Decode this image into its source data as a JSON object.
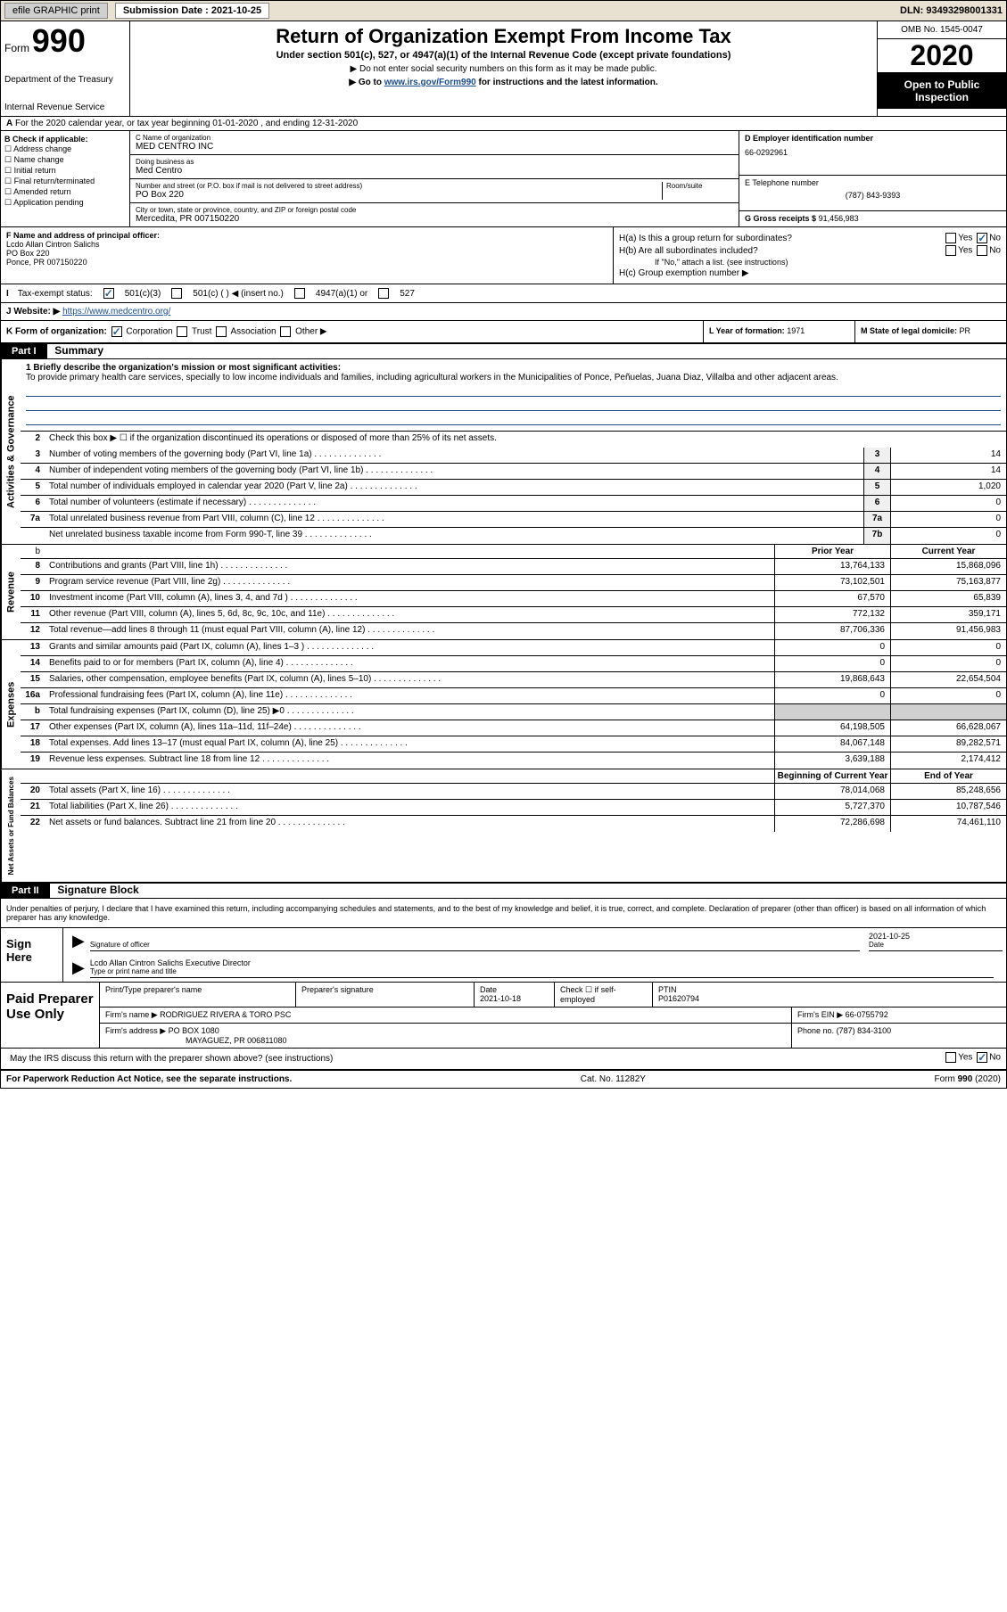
{
  "top": {
    "efile": "efile GRAPHIC print",
    "sub_label": "Submission Date : 2021-10-25",
    "dln": "DLN: 93493298001331"
  },
  "header": {
    "form_label": "Form",
    "form_num": "990",
    "dept": "Department of the Treasury",
    "irs": "Internal Revenue Service",
    "title": "Return of Organization Exempt From Income Tax",
    "sub1": "Under section 501(c), 527, or 4947(a)(1) of the Internal Revenue Code (except private foundations)",
    "sub2": "▶ Do not enter social security numbers on this form as it may be made public.",
    "sub3_pre": "▶ Go to ",
    "sub3_link": "www.irs.gov/Form990",
    "sub3_post": " for instructions and the latest information.",
    "omb": "OMB No. 1545-0047",
    "year": "2020",
    "open_pub": "Open to Public Inspection"
  },
  "row_a": "For the 2020 calendar year, or tax year beginning 01-01-2020   , and ending 12-31-2020",
  "sec_b": {
    "title": "B Check if applicable:",
    "opts": [
      "Address change",
      "Name change",
      "Initial return",
      "Final return/terminated",
      "Amended return",
      "Application pending"
    ]
  },
  "sec_c": {
    "name_label": "C Name of organization",
    "name": "MED CENTRO INC",
    "dba_label": "Doing business as",
    "dba": "Med Centro",
    "addr_label": "Number and street (or P.O. box if mail is not delivered to street address)",
    "room_label": "Room/suite",
    "addr": "PO Box 220",
    "city_label": "City or town, state or province, country, and ZIP or foreign postal code",
    "city": "Mercedita, PR  007150220"
  },
  "sec_d": {
    "label": "D Employer identification number",
    "val": "66-0292961"
  },
  "sec_e": {
    "label": "E Telephone number",
    "val": "(787) 843-9393"
  },
  "sec_g": {
    "label": "G Gross receipts $",
    "val": "91,456,983"
  },
  "sec_f": {
    "label": "F  Name and address of principal officer:",
    "name": "Lcdo Allan Cintron Salichs",
    "addr1": "PO Box 220",
    "addr2": "Ponce, PR  007150220"
  },
  "sec_h": {
    "ha": "H(a)  Is this a group return for subordinates?",
    "hb": "H(b)  Are all subordinates included?",
    "hb_note": "If \"No,\" attach a list. (see instructions)",
    "hc": "H(c)  Group exemption number ▶"
  },
  "row_i": {
    "label": "Tax-exempt status:",
    "opts": [
      "501(c)(3)",
      "501(c) (  ) ◀ (insert no.)",
      "4947(a)(1) or",
      "527"
    ]
  },
  "row_j": {
    "label": "Website: ▶",
    "val": "https://www.medcentro.org/"
  },
  "row_k": {
    "label": "K Form of organization:",
    "opts": [
      "Corporation",
      "Trust",
      "Association",
      "Other ▶"
    ]
  },
  "row_l": {
    "label": "L Year of formation:",
    "val": "1971"
  },
  "row_m": {
    "label": "M State of legal domicile:",
    "val": "PR"
  },
  "part1": {
    "hdr": "Part I",
    "title": "Summary",
    "mission_label": "1  Briefly describe the organization's mission or most significant activities:",
    "mission": "To provide primary health care services, specially to low income individuals and families, including agricultural workers in the Municipalities of Ponce, Peñuelas, Juana Diaz, Villalba and other adjacent areas.",
    "line2": "Check this box ▶ ☐  if the organization discontinued its operations or disposed of more than 25% of its net assets.",
    "gov_lines": [
      {
        "n": "3",
        "d": "Number of voting members of the governing body (Part VI, line 1a)",
        "b": "3",
        "v": "14"
      },
      {
        "n": "4",
        "d": "Number of independent voting members of the governing body (Part VI, line 1b)",
        "b": "4",
        "v": "14"
      },
      {
        "n": "5",
        "d": "Total number of individuals employed in calendar year 2020 (Part V, line 2a)",
        "b": "5",
        "v": "1,020"
      },
      {
        "n": "6",
        "d": "Total number of volunteers (estimate if necessary)",
        "b": "6",
        "v": "0"
      },
      {
        "n": "7a",
        "d": "Total unrelated business revenue from Part VIII, column (C), line 12",
        "b": "7a",
        "v": "0"
      },
      {
        "n": "",
        "d": "Net unrelated business taxable income from Form 990-T, line 39",
        "b": "7b",
        "v": "0"
      }
    ],
    "prior_hdr": "Prior Year",
    "curr_hdr": "Current Year",
    "rev_lines": [
      {
        "n": "8",
        "d": "Contributions and grants (Part VIII, line 1h)",
        "p": "13,764,133",
        "c": "15,868,096"
      },
      {
        "n": "9",
        "d": "Program service revenue (Part VIII, line 2g)",
        "p": "73,102,501",
        "c": "75,163,877"
      },
      {
        "n": "10",
        "d": "Investment income (Part VIII, column (A), lines 3, 4, and 7d )",
        "p": "67,570",
        "c": "65,839"
      },
      {
        "n": "11",
        "d": "Other revenue (Part VIII, column (A), lines 5, 6d, 8c, 9c, 10c, and 11e)",
        "p": "772,132",
        "c": "359,171"
      },
      {
        "n": "12",
        "d": "Total revenue—add lines 8 through 11 (must equal Part VIII, column (A), line 12)",
        "p": "87,706,336",
        "c": "91,456,983"
      }
    ],
    "exp_lines": [
      {
        "n": "13",
        "d": "Grants and similar amounts paid (Part IX, column (A), lines 1–3 )",
        "p": "0",
        "c": "0"
      },
      {
        "n": "14",
        "d": "Benefits paid to or for members (Part IX, column (A), line 4)",
        "p": "0",
        "c": "0"
      },
      {
        "n": "15",
        "d": "Salaries, other compensation, employee benefits (Part IX, column (A), lines 5–10)",
        "p": "19,868,643",
        "c": "22,654,504"
      },
      {
        "n": "16a",
        "d": "Professional fundraising fees (Part IX, column (A), line 11e)",
        "p": "0",
        "c": "0"
      },
      {
        "n": "b",
        "d": "Total fundraising expenses (Part IX, column (D), line 25) ▶0",
        "p": "",
        "c": "",
        "shaded": true
      },
      {
        "n": "17",
        "d": "Other expenses (Part IX, column (A), lines 11a–11d, 11f–24e)",
        "p": "64,198,505",
        "c": "66,628,067"
      },
      {
        "n": "18",
        "d": "Total expenses. Add lines 13–17 (must equal Part IX, column (A), line 25)",
        "p": "84,067,148",
        "c": "89,282,571"
      },
      {
        "n": "19",
        "d": "Revenue less expenses. Subtract line 18 from line 12",
        "p": "3,639,188",
        "c": "2,174,412"
      }
    ],
    "net_hdr_p": "Beginning of Current Year",
    "net_hdr_c": "End of Year",
    "net_lines": [
      {
        "n": "20",
        "d": "Total assets (Part X, line 16)",
        "p": "78,014,068",
        "c": "85,248,656"
      },
      {
        "n": "21",
        "d": "Total liabilities (Part X, line 26)",
        "p": "5,727,370",
        "c": "10,787,546"
      },
      {
        "n": "22",
        "d": "Net assets or fund balances. Subtract line 21 from line 20",
        "p": "72,286,698",
        "c": "74,461,110"
      }
    ]
  },
  "part2": {
    "hdr": "Part II",
    "title": "Signature Block",
    "decl": "Under penalties of perjury, I declare that I have examined this return, including accompanying schedules and statements, and to the best of my knowledge and belief, it is true, correct, and complete. Declaration of preparer (other than officer) is based on all information of which preparer has any knowledge.",
    "sign_here": "Sign Here",
    "sig_officer": "Signature of officer",
    "sig_date": "2021-10-25",
    "date_lbl": "Date",
    "officer_name": "Lcdo Allan Cintron Salichs  Executive Director",
    "type_name": "Type or print name and title",
    "paid_prep": "Paid Preparer Use Only",
    "prep_name_lbl": "Print/Type preparer's name",
    "prep_sig_lbl": "Preparer's signature",
    "prep_date_lbl": "Date",
    "prep_date": "2021-10-18",
    "check_se": "Check ☐ if self-employed",
    "ptin_lbl": "PTIN",
    "ptin": "P01620794",
    "firm_name_lbl": "Firm's name     ▶",
    "firm_name": "RODRIGUEZ RIVERA & TORO PSC",
    "firm_ein_lbl": "Firm's EIN ▶",
    "firm_ein": "66-0755792",
    "firm_addr_lbl": "Firm's address ▶",
    "firm_addr1": "PO BOX 1080",
    "firm_addr2": "MAYAGUEZ, PR  006811080",
    "phone_lbl": "Phone no.",
    "phone": "(787) 834-3100",
    "discuss": "May the IRS discuss this return with the preparer shown above? (see instructions)"
  },
  "footer": {
    "left": "For Paperwork Reduction Act Notice, see the separate instructions.",
    "mid": "Cat. No. 11282Y",
    "right": "Form 990 (2020)"
  }
}
